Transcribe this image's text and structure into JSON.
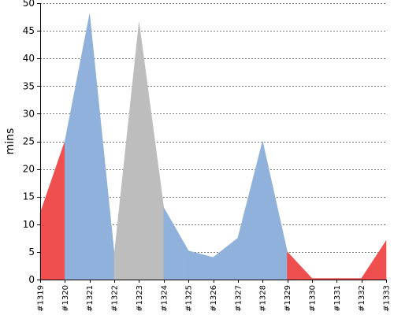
{
  "chart_data": {
    "type": "area",
    "title": "",
    "xlabel": "",
    "ylabel": "mins",
    "ylim": [
      0,
      50
    ],
    "yticks": [
      0,
      5,
      10,
      15,
      20,
      25,
      30,
      35,
      40,
      45,
      50
    ],
    "grid": true,
    "legend": "none",
    "categories": [
      "#1319",
      "#1320",
      "#1321",
      "#1322",
      "#1323",
      "#1324",
      "#1325",
      "#1326",
      "#1327",
      "#1328",
      "#1329",
      "#1330",
      "#1331",
      "#1332",
      "#1333"
    ],
    "values": [
      12,
      25,
      48,
      4.5,
      46.5,
      13,
      5.2,
      4,
      7.5,
      25,
      5,
      0.2,
      0.2,
      0.2,
      7
    ],
    "segment_status": [
      "failed",
      "success",
      "success",
      "unstable",
      "unstable",
      "success",
      "success",
      "success",
      "success",
      "success",
      "failed",
      "failed",
      "failed",
      "failed",
      "success"
    ],
    "colors": {
      "success": "#8fb1db",
      "failed": "#ef4f4f",
      "unstable": "#bdbdbd"
    }
  }
}
